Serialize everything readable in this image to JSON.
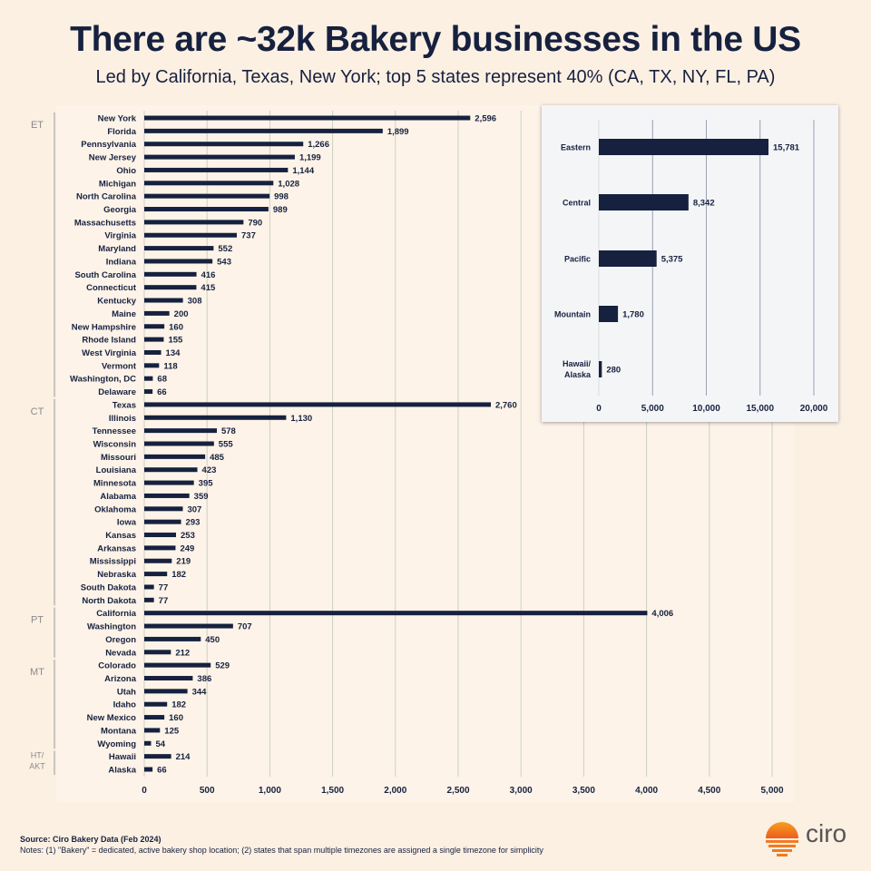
{
  "header": {
    "title": "There are ~32k Bakery businesses in the US",
    "subtitle": "Led by California, Texas, New York; top 5 states represent 40% (CA, TX, NY, FL, PA)"
  },
  "footer": {
    "source": "Source: Ciro Bakery  Data (Feb 2024)",
    "notes": "Notes: (1) \"Bakery\" = dedicated, active bakery shop location; (2) states that span multiple timezones are assigned a single timezone for simplicity",
    "logo_text": "ciro"
  },
  "colors": {
    "background": "#fcf0e3",
    "bar": "#16213f",
    "grid": "#c9d3c0",
    "logo": "#f47b20"
  },
  "chart_data": [
    {
      "type": "bar",
      "orientation": "horizontal",
      "xlim": [
        0,
        5000
      ],
      "xticks": [
        "0",
        "500",
        "1,000",
        "1,500",
        "2,000",
        "2,500",
        "3,000",
        "3,500",
        "4,000",
        "4,500",
        "5,000"
      ],
      "xtick_values": [
        0,
        500,
        1000,
        1500,
        2000,
        2500,
        3000,
        3500,
        4000,
        4500,
        5000
      ],
      "grid": true,
      "groups": [
        {
          "label": "ET",
          "categories": [
            "New York",
            "Florida",
            "Pennsylvania",
            "New Jersey",
            "Ohio",
            "Michigan",
            "North Carolina",
            "Georgia",
            "Massachusetts",
            "Virginia",
            "Maryland",
            "Indiana",
            "South Carolina",
            "Connecticut",
            "Kentucky",
            "Maine",
            "New Hampshire",
            "Rhode Island",
            "West Virginia",
            "Vermont",
            "Washington, DC",
            "Delaware"
          ],
          "values": [
            2596,
            1899,
            1266,
            1199,
            1144,
            1028,
            998,
            989,
            790,
            737,
            552,
            543,
            416,
            415,
            308,
            200,
            160,
            155,
            134,
            118,
            68,
            66
          ],
          "labels": [
            "2,596",
            "1,899",
            "1,266",
            "1,199",
            "1,144",
            "1,028",
            "998",
            "989",
            "790",
            "737",
            "552",
            "543",
            "416",
            "415",
            "308",
            "200",
            "160",
            "155",
            "134",
            "118",
            "68",
            "66"
          ]
        },
        {
          "label": "CT",
          "categories": [
            "Texas",
            "Illinois",
            "Tennessee",
            "Wisconsin",
            "Missouri",
            "Louisiana",
            "Minnesota",
            "Alabama",
            "Oklahoma",
            "Iowa",
            "Kansas",
            "Arkansas",
            "Mississippi",
            "Nebraska",
            "South Dakota",
            "North Dakota"
          ],
          "values": [
            2760,
            1130,
            578,
            555,
            485,
            423,
            395,
            359,
            307,
            293,
            253,
            249,
            219,
            182,
            77,
            77
          ],
          "labels": [
            "2,760",
            "1,130",
            "578",
            "555",
            "485",
            "423",
            "395",
            "359",
            "307",
            "293",
            "253",
            "249",
            "219",
            "182",
            "77",
            "77"
          ]
        },
        {
          "label": "PT",
          "categories": [
            "California",
            "Washington",
            "Oregon",
            "Nevada"
          ],
          "values": [
            4006,
            707,
            450,
            212
          ],
          "labels": [
            "4,006",
            "707",
            "450",
            "212"
          ]
        },
        {
          "label": "MT",
          "categories": [
            "Colorado",
            "Arizona",
            "Utah",
            "Idaho",
            "New Mexico",
            "Montana",
            "Wyoming"
          ],
          "values": [
            529,
            386,
            344,
            182,
            160,
            125,
            54
          ],
          "labels": [
            "529",
            "386",
            "344",
            "182",
            "160",
            "125",
            "54"
          ]
        },
        {
          "label": "HT/\nAKT",
          "categories": [
            "Hawaii",
            "Alaska"
          ],
          "values": [
            214,
            66
          ],
          "labels": [
            "214",
            "66"
          ]
        }
      ]
    },
    {
      "type": "bar",
      "orientation": "horizontal",
      "xlim": [
        0,
        20000
      ],
      "xticks": [
        "0",
        "5,000",
        "10,000",
        "15,000",
        "20,000"
      ],
      "xtick_values": [
        0,
        5000,
        10000,
        15000,
        20000
      ],
      "grid": true,
      "categories": [
        "Eastern",
        "Central",
        "Pacific",
        "Mountain",
        "Hawaii/\nAlaska"
      ],
      "values": [
        15781,
        8342,
        5375,
        1780,
        280
      ],
      "labels": [
        "15,781",
        "8,342",
        "5,375",
        "1,780",
        "280"
      ]
    }
  ]
}
